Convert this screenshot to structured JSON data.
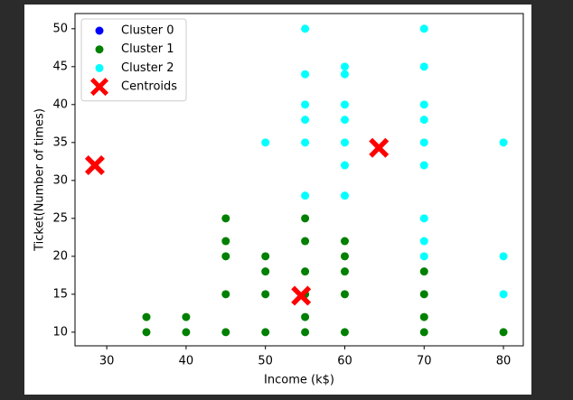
{
  "chart_data": {
    "type": "scatter",
    "xlabel": "Income (k$)",
    "ylabel": "Ticket(Number of times)",
    "xlim": [
      26,
      82.5
    ],
    "xticks": [
      30,
      40,
      50,
      60,
      70,
      80
    ],
    "ylim": [
      8.2,
      52
    ],
    "yticks": [
      10,
      15,
      20,
      25,
      30,
      35,
      40,
      45,
      50
    ],
    "legend": "upper left",
    "series": [
      {
        "name": "Cluster 0",
        "color": "#0000ff",
        "marker": "circle",
        "x": [],
        "y": []
      },
      {
        "name": "Cluster 1",
        "color": "#008000",
        "marker": "circle",
        "x": [
          35,
          35,
          40,
          40,
          45,
          45,
          45,
          45,
          45,
          50,
          50,
          50,
          50,
          55,
          55,
          55,
          55,
          55,
          55,
          60,
          60,
          60,
          60,
          60,
          70,
          70,
          70,
          70,
          80
        ],
        "y": [
          12,
          10,
          12,
          10,
          25,
          22,
          20,
          15,
          10,
          20,
          18,
          15,
          10,
          25,
          22,
          18,
          15,
          12,
          10,
          22,
          20,
          18,
          15,
          10,
          18,
          15,
          12,
          10,
          10
        ]
      },
      {
        "name": "Cluster 2",
        "color": "#00ffff",
        "marker": "circle",
        "x": [
          50,
          55,
          55,
          55,
          55,
          55,
          55,
          60,
          60,
          60,
          60,
          60,
          60,
          60,
          70,
          70,
          70,
          70,
          70,
          70,
          70,
          70,
          70,
          80,
          80,
          80
        ],
        "y": [
          35,
          50,
          44,
          40,
          38,
          35,
          28,
          45,
          44,
          40,
          38,
          35,
          32,
          28,
          50,
          45,
          40,
          38,
          35,
          32,
          25,
          22,
          20,
          35,
          20,
          15
        ]
      },
      {
        "name": "Centroids",
        "color": "#ff0000",
        "marker": "x",
        "x": [
          28.5,
          64.3,
          54.5
        ],
        "y": [
          32,
          34.3,
          14.8
        ]
      }
    ]
  }
}
